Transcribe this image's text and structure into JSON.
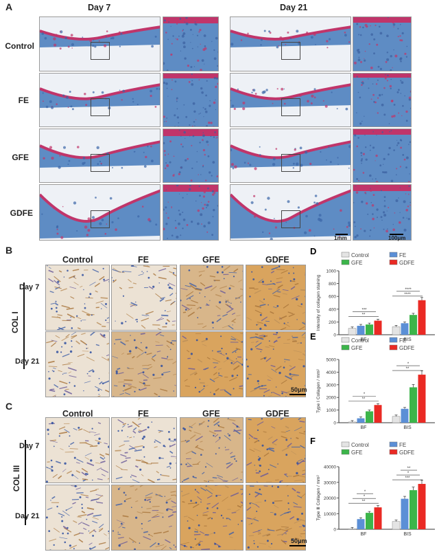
{
  "panelA": {
    "letter": "A",
    "day7": "Day 7",
    "day21": "Day 21",
    "rows": [
      "Control",
      "FE",
      "GFE",
      "GDFE"
    ],
    "scalebars": [
      "1mm",
      "100μm"
    ]
  },
  "panelB": {
    "letter": "B",
    "columns": [
      "Control",
      "FE",
      "GFE",
      "GDFE"
    ],
    "stain": "COL I",
    "day7": "Day 7",
    "day21": "Day 21",
    "scalebar": "50μm"
  },
  "panelC": {
    "letter": "C",
    "columns": [
      "Control",
      "FE",
      "GFE",
      "GDFE"
    ],
    "stain": "COL III",
    "day7": "Day 7",
    "day21": "Day 21",
    "scalebar": "50μm"
  },
  "colors": {
    "control": "#e4e4e4",
    "fe": "#5b8fd6",
    "gfe": "#3cb54a",
    "gdfe": "#ea2a24",
    "masson_blue": "#5e8cc4",
    "masson_red": "#c0356a",
    "ihc_tan": "#d8b68a"
  },
  "chart_data": [
    {
      "id": "D",
      "letter": "D",
      "type": "bar",
      "ylabel": "Intensity of collagen staining",
      "ylim": [
        0,
        1000
      ],
      "yticks": [
        0,
        200,
        400,
        600,
        800,
        1000
      ],
      "categories": [
        "BF",
        "BIS"
      ],
      "series": [
        {
          "name": "Control",
          "values": [
            100,
            125
          ]
        },
        {
          "name": "FE",
          "values": [
            140,
            180
          ]
        },
        {
          "name": "GFE",
          "values": [
            160,
            310
          ]
        },
        {
          "name": "GDFE",
          "values": [
            220,
            540
          ]
        }
      ],
      "annotations": [
        "**",
        "***",
        "****",
        "****"
      ]
    },
    {
      "id": "E",
      "letter": "E",
      "type": "bar",
      "ylabel": "Type Ⅰ Collagen / mm²",
      "ylim": [
        0,
        5000
      ],
      "yticks": [
        0,
        1000,
        2000,
        3000,
        4000,
        5000
      ],
      "categories": [
        "BF",
        "BIS"
      ],
      "series": [
        {
          "name": "Control",
          "values": [
            60,
            500
          ]
        },
        {
          "name": "FE",
          "values": [
            350,
            1100
          ]
        },
        {
          "name": "GFE",
          "values": [
            900,
            2800
          ]
        },
        {
          "name": "GDFE",
          "values": [
            1400,
            3800
          ]
        }
      ],
      "annotations": [
        "**",
        "*",
        "**",
        "*"
      ]
    },
    {
      "id": "F",
      "letter": "F",
      "type": "bar",
      "ylabel": "Type Ⅲ Collagen / mm²",
      "ylim": [
        0,
        40000
      ],
      "yticks": [
        0,
        10000,
        20000,
        30000,
        40000
      ],
      "categories": [
        "BF",
        "BIS"
      ],
      "series": [
        {
          "name": "Control",
          "values": [
            300,
            5000
          ]
        },
        {
          "name": "FE",
          "values": [
            6500,
            19500
          ]
        },
        {
          "name": "GFE",
          "values": [
            10500,
            25000
          ]
        },
        {
          "name": "GDFE",
          "values": [
            14000,
            29000
          ]
        }
      ],
      "annotations": [
        "**",
        "*",
        "*",
        "***",
        "*",
        "**"
      ]
    }
  ]
}
